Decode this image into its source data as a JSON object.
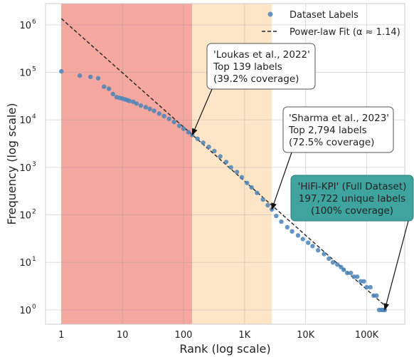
{
  "chart_data": {
    "type": "scatter",
    "xlabel": "Rank (log scale)",
    "ylabel": "Frequency (log scale)",
    "x_scale": "log",
    "y_scale": "log",
    "xlim": [
      0.55,
      420000
    ],
    "ylim": [
      0.5,
      2800000
    ],
    "grid": true,
    "legend_position": "top-right",
    "x_ticks": [
      {
        "value": 1,
        "label": "1"
      },
      {
        "value": 10,
        "label": "10"
      },
      {
        "value": 100,
        "label": "100"
      },
      {
        "value": 1000,
        "label": "1K"
      },
      {
        "value": 10000,
        "label": "10K"
      },
      {
        "value": 100000,
        "label": "100K"
      }
    ],
    "y_ticks": [
      {
        "value": 1,
        "base": "10",
        "exp": "0"
      },
      {
        "value": 10,
        "base": "10",
        "exp": "1"
      },
      {
        "value": 100,
        "base": "10",
        "exp": "2"
      },
      {
        "value": 1000,
        "base": "10",
        "exp": "3"
      },
      {
        "value": 10000,
        "base": "10",
        "exp": "4"
      },
      {
        "value": 100000,
        "base": "10",
        "exp": "5"
      },
      {
        "value": 1000000,
        "base": "10",
        "exp": "6"
      }
    ],
    "regions": [
      {
        "x_start": 1,
        "x_end": 139,
        "color": "#f4a89f"
      },
      {
        "x_start": 139,
        "x_end": 2794,
        "color": "#fde6c8"
      }
    ],
    "series": [
      {
        "name": "Dataset Labels",
        "kind": "scatter",
        "color": "#4a84b8",
        "points": [
          [
            1,
            105000
          ],
          [
            2,
            85000
          ],
          [
            3,
            80000
          ],
          [
            4,
            75000
          ],
          [
            5,
            50000
          ],
          [
            6,
            45000
          ],
          [
            7,
            35000
          ],
          [
            8,
            30000
          ],
          [
            9,
            29000
          ],
          [
            10,
            28000
          ],
          [
            11,
            27000
          ],
          [
            12,
            26000
          ],
          [
            13,
            25000
          ],
          [
            15,
            24000
          ],
          [
            17,
            22000
          ],
          [
            20,
            20000
          ],
          [
            24,
            18500
          ],
          [
            28,
            17000
          ],
          [
            33,
            15500
          ],
          [
            40,
            13500
          ],
          [
            48,
            12000
          ],
          [
            58,
            10500
          ],
          [
            70,
            9000
          ],
          [
            85,
            7500
          ],
          [
            100,
            6500
          ],
          [
            120,
            5500
          ],
          [
            139,
            4800
          ],
          [
            170,
            4000
          ],
          [
            210,
            3300
          ],
          [
            260,
            2700
          ],
          [
            320,
            2200
          ],
          [
            400,
            1700
          ],
          [
            500,
            1300
          ],
          [
            600,
            1000
          ],
          [
            750,
            800
          ],
          [
            900,
            620
          ],
          [
            1100,
            470
          ],
          [
            1300,
            380
          ],
          [
            1600,
            290
          ],
          [
            2000,
            210
          ],
          [
            2400,
            160
          ],
          [
            2794,
            130
          ],
          [
            3300,
            95
          ],
          [
            4000,
            72
          ],
          [
            5000,
            55
          ],
          [
            6000,
            45
          ],
          [
            7500,
            37
          ],
          [
            9000,
            31
          ],
          [
            11000,
            26
          ],
          [
            13000,
            22
          ],
          [
            16000,
            18
          ],
          [
            20000,
            15
          ],
          [
            24000,
            12
          ],
          [
            28000,
            10
          ],
          [
            33000,
            9
          ],
          [
            38000,
            8
          ],
          [
            42000,
            7
          ],
          [
            48000,
            6
          ],
          [
            55000,
            6
          ],
          [
            62000,
            5
          ],
          [
            70000,
            5
          ],
          [
            80000,
            4
          ],
          [
            90000,
            4
          ],
          [
            100000,
            3
          ],
          [
            115000,
            3
          ],
          [
            130000,
            2
          ],
          [
            145000,
            2
          ],
          [
            160000,
            1
          ],
          [
            175000,
            1
          ],
          [
            190000,
            1
          ],
          [
            197722,
            1
          ]
        ]
      },
      {
        "name": "Power-law Fit (α ≈ 1.14)",
        "kind": "line",
        "style": "dashed",
        "color": "#222222",
        "x_range": [
          1,
          197722
        ],
        "y_at_1": 1350000,
        "alpha": 1.14
      }
    ],
    "annotations": [
      {
        "lines": [
          "'Loukas et al., 2022'",
          "Top 139 labels",
          "(39.2% coverage)"
        ],
        "arrow_target": [
          139,
          4800
        ],
        "box_style": "white",
        "align": "left"
      },
      {
        "lines": [
          "'Sharma et al., 2023'",
          "Top 2,794 labels",
          "(72.5% coverage)"
        ],
        "arrow_target": [
          2794,
          130
        ],
        "box_style": "white",
        "align": "left"
      },
      {
        "lines": [
          "'HiFi-KPI' (Full Dataset)",
          "197,722 unique labels",
          "(100% coverage)"
        ],
        "arrow_target": [
          197722,
          1
        ],
        "box_style": "teal",
        "box_color": "#3fa39e",
        "align": "center"
      }
    ]
  }
}
